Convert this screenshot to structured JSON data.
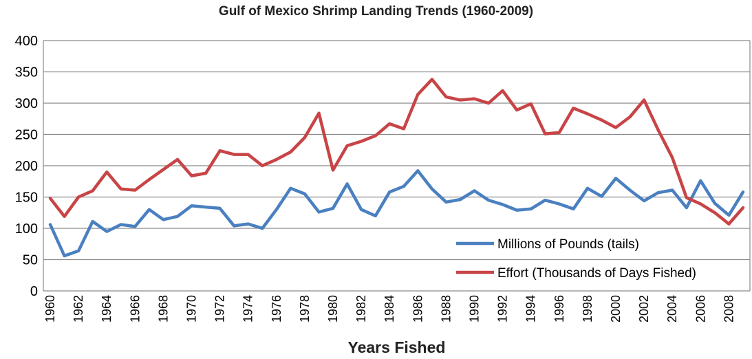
{
  "chart_data": {
    "type": "line",
    "title": "Gulf of Mexico Shrimp Landing Trends (1960-2009)",
    "xlabel": "Years Fished",
    "ylabel": "",
    "ylim": [
      0,
      400
    ],
    "yticks": [
      0,
      50,
      100,
      150,
      200,
      250,
      300,
      350,
      400
    ],
    "x": [
      1960,
      1961,
      1962,
      1963,
      1964,
      1965,
      1966,
      1967,
      1968,
      1969,
      1970,
      1971,
      1972,
      1973,
      1974,
      1975,
      1976,
      1977,
      1978,
      1979,
      1980,
      1981,
      1982,
      1983,
      1984,
      1985,
      1986,
      1987,
      1988,
      1989,
      1990,
      1991,
      1992,
      1993,
      1994,
      1995,
      1996,
      1997,
      1998,
      1999,
      2000,
      2001,
      2002,
      2003,
      2004,
      2005,
      2006,
      2007,
      2008,
      2009
    ],
    "xtick_labels": [
      "1960",
      "1962",
      "1964",
      "1966",
      "1968",
      "1970",
      "1972",
      "1974",
      "1976",
      "1978",
      "1980",
      "1982",
      "1984",
      "1986",
      "1988",
      "1990",
      "1992",
      "1994",
      "1996",
      "1998",
      "2000",
      "2002",
      "2004",
      "2006",
      "2008"
    ],
    "grid": true,
    "legend_position": "bottom-right",
    "series": [
      {
        "name": "Millions of Pounds (tails)",
        "color": "#4a80c0",
        "values": [
          106,
          56,
          64,
          111,
          95,
          106,
          103,
          130,
          114,
          119,
          136,
          134,
          132,
          104,
          107,
          100,
          130,
          164,
          155,
          126,
          132,
          171,
          130,
          120,
          158,
          167,
          192,
          163,
          142,
          146,
          160,
          145,
          138,
          129,
          131,
          145,
          139,
          131,
          164,
          151,
          180,
          161,
          144,
          157,
          161,
          133,
          176,
          140,
          121,
          158
        ]
      },
      {
        "name": "Effort (Thousands of Days Fished)",
        "color": "#c84446",
        "values": [
          148,
          119,
          150,
          160,
          190,
          163,
          161,
          178,
          194,
          210,
          184,
          188,
          224,
          218,
          218,
          200,
          210,
          222,
          245,
          284,
          193,
          232,
          239,
          248,
          267,
          259,
          314,
          338,
          310,
          305,
          307,
          300,
          320,
          289,
          299,
          251,
          253,
          292,
          283,
          273,
          261,
          278,
          305,
          257,
          213,
          149,
          139,
          125,
          107,
          133
        ]
      }
    ]
  }
}
